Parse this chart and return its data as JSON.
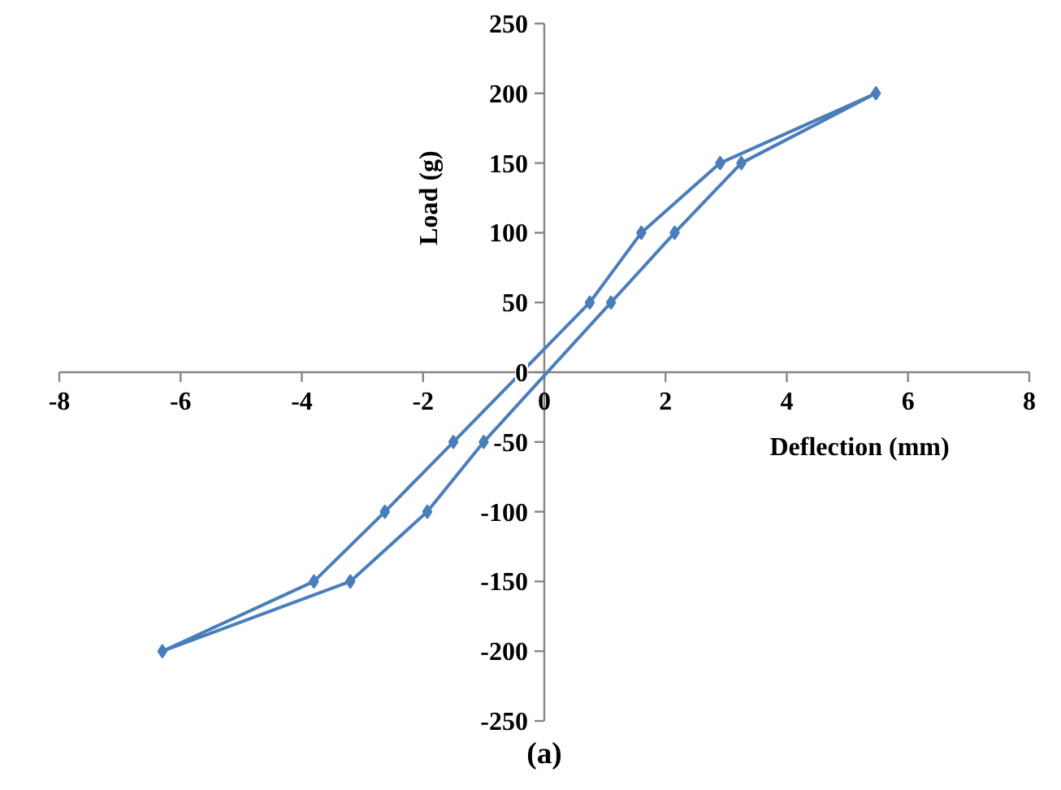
{
  "chart_data": {
    "type": "scatter",
    "xlabel": "Deflection (mm)",
    "ylabel": "Load (g)",
    "annotations": [
      "(a)"
    ],
    "xlim": [
      -8,
      8
    ],
    "ylim": [
      -250,
      250
    ],
    "xticks": [
      -8,
      -6,
      -4,
      -2,
      0,
      2,
      4,
      6,
      8
    ],
    "yticks": [
      -250,
      -200,
      -150,
      -100,
      -50,
      0,
      50,
      100,
      150,
      200,
      250
    ],
    "grid": false,
    "marker": "diamond",
    "line_style": "solid",
    "series": [
      {
        "color": "#4a7ebb",
        "x": [
          -6.3,
          -3.2,
          -1.93,
          -1.0,
          1.1,
          2.15,
          3.25,
          5.47,
          2.9,
          1.6,
          0.75,
          -1.5,
          -2.63,
          -3.8
        ],
        "values": [
          -200,
          -150,
          -100,
          -50,
          50,
          100,
          150,
          200,
          150,
          100,
          50,
          -50,
          -100,
          -150
        ]
      }
    ]
  }
}
